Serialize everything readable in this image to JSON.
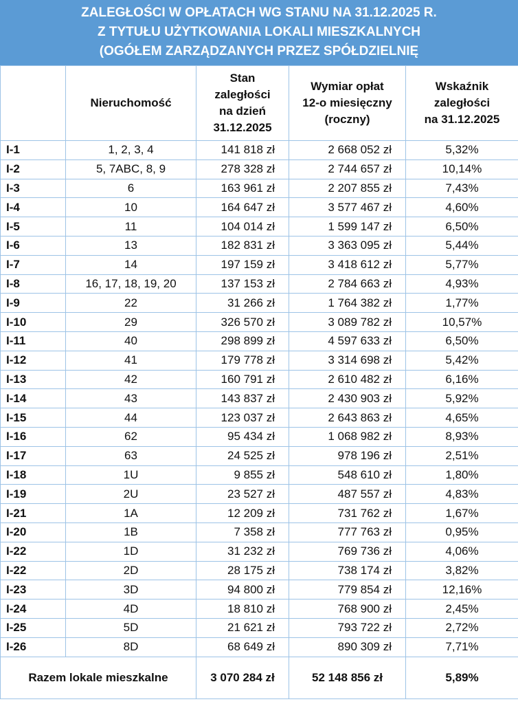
{
  "title": [
    "ZALEGŁOŚCI W OPŁATACH WG STANU NA 31.12.2025 R.",
    "Z TYTUŁU UŻYTKOWANIA LOKALI MIESZKALNYCH",
    "(OGÓŁEM ZARZĄDZANYCH PRZEZ SPÓŁDZIELNIĘ"
  ],
  "table": {
    "headers": [
      [
        "Nieruchomość"
      ],
      [
        "Stan",
        "zaległości",
        "na dzień",
        "31.12.2025"
      ],
      [
        "Wymiar opłat",
        "12-o miesięczny",
        "(roczny)"
      ],
      [
        "Wskaźnik",
        "zaległości",
        "na 31.12.2025"
      ]
    ],
    "rows": [
      [
        "I-1",
        "1, 2, 3, 4",
        "141 818 zł",
        "2 668 052 zł",
        "5,32%"
      ],
      [
        "I-2",
        "5, 7ABC, 8, 9",
        "278 328 zł",
        "2 744 657 zł",
        "10,14%"
      ],
      [
        "I-3",
        "6",
        "163 961 zł",
        "2 207 855 zł",
        "7,43%"
      ],
      [
        "I-4",
        "10",
        "164 647 zł",
        "3 577 467 zł",
        "4,60%"
      ],
      [
        "I-5",
        "11",
        "104 014 zł",
        "1 599 147 zł",
        "6,50%"
      ],
      [
        "I-6",
        "13",
        "182 831 zł",
        "3 363 095 zł",
        "5,44%"
      ],
      [
        "I-7",
        "14",
        "197 159 zł",
        "3 418 612 zł",
        "5,77%"
      ],
      [
        "I-8",
        "16, 17, 18, 19, 20",
        "137 153 zł",
        "2 784 663 zł",
        "4,93%"
      ],
      [
        "I-9",
        "22",
        "31 266 zł",
        "1 764 382 zł",
        "1,77%"
      ],
      [
        "I-10",
        "29",
        "326 570 zł",
        "3 089 782 zł",
        "10,57%"
      ],
      [
        "I-11",
        "40",
        "298 899 zł",
        "4 597 633 zł",
        "6,50%"
      ],
      [
        "I-12",
        "41",
        "179 778 zł",
        "3 314 698 zł",
        "5,42%"
      ],
      [
        "I-13",
        "42",
        "160 791 zł",
        "2 610 482 zł",
        "6,16%"
      ],
      [
        "I-14",
        "43",
        "143 837 zł",
        "2 430 903 zł",
        "5,92%"
      ],
      [
        "I-15",
        "44",
        "123 037 zł",
        "2 643 863 zł",
        "4,65%"
      ],
      [
        "I-16",
        "62",
        "95 434 zł",
        "1 068 982 zł",
        "8,93%"
      ],
      [
        "I-17",
        "63",
        "24 525 zł",
        "978 196 zł",
        "2,51%"
      ],
      [
        "I-18",
        "1U",
        "9 855 zł",
        "548 610 zł",
        "1,80%"
      ],
      [
        "I-19",
        "2U",
        "23 527 zł",
        "487 557 zł",
        "4,83%"
      ],
      [
        "I-21",
        "1A",
        "12 209 zł",
        "731 762 zł",
        "1,67%"
      ],
      [
        "I-20",
        "1B",
        "7 358 zł",
        "777 763 zł",
        "0,95%"
      ],
      [
        "I-22",
        "1D",
        "31 232 zł",
        "769 736 zł",
        "4,06%"
      ],
      [
        "I-22",
        "2D",
        "28 175 zł",
        "738 174 zł",
        "3,82%"
      ],
      [
        "I-23",
        "3D",
        "94 800 zł",
        "779 854 zł",
        "12,16%"
      ],
      [
        "I-24",
        "4D",
        "18 810 zł",
        "768 900 zł",
        "2,45%"
      ],
      [
        "I-25",
        "5D",
        "21 621 zł",
        "793 722 zł",
        "2,72%"
      ],
      [
        "I-26",
        "8D",
        "68 649 zł",
        "890 309 zł",
        "7,71%"
      ]
    ],
    "total": [
      "Razem lokale mieszkalne",
      "3 070 284 zł",
      "52 148 856 zł",
      "5,89%"
    ]
  }
}
